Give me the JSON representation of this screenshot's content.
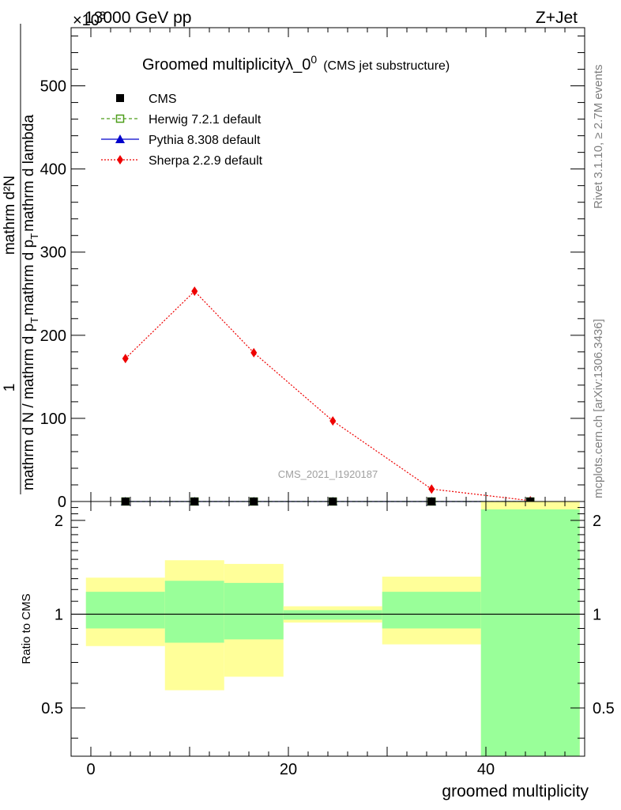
{
  "header": {
    "energy_label": "13000 GeV pp",
    "process_label": "Z+Jet",
    "exponent_label": "×10",
    "exponent_power": "3"
  },
  "side_labels": {
    "rivet": "Rivet 3.1.10, ≥ 2.7M events",
    "mcplots": "mcplots.cern.ch [arXiv:1306.3436]"
  },
  "watermark": "CMS_2021_I1920187",
  "chart_data": [
    {
      "type": "line",
      "title": "Groomed multiplicity",
      "title_symbol": "λ_0",
      "title_power": "0",
      "title_note": "(CMS jet substructure)",
      "ylabel_numerator": "1",
      "ylabel_main": "mathrm d N / mathrm d p",
      "ylabel_top": "mathrm d²N",
      "ylabel_bottom": "mathrm d p",
      "ylabel_tail": "mathrm d lambda",
      "ylabel_sub": "T",
      "xlim": [
        -2,
        50
      ],
      "ylim": [
        0,
        570
      ],
      "yticks": [
        0,
        100,
        200,
        300,
        400,
        500
      ],
      "y_scale_note": "×10^3",
      "bins": [
        [
          -0.5,
          7.5
        ],
        [
          7.5,
          13.5
        ],
        [
          13.5,
          19.5
        ],
        [
          19.5,
          29.5
        ],
        [
          29.5,
          39.5
        ],
        [
          39.5,
          49.5
        ]
      ],
      "x": [
        3.5,
        10.5,
        16.5,
        24.5,
        34.5,
        44.5
      ],
      "series": [
        {
          "name": "CMS",
          "color": "#000000",
          "marker": "square",
          "values": [
            0,
            0,
            0,
            0,
            0,
            0
          ]
        },
        {
          "name": "Herwig 7.2.1 default",
          "color": "#4d9e1a",
          "marker": "open-square",
          "values": [
            0,
            0,
            0,
            0,
            0,
            0
          ]
        },
        {
          "name": "Pythia 8.308 default",
          "color": "#0000cc",
          "marker": "triangle",
          "values": [
            0,
            0,
            0,
            0,
            0,
            0
          ]
        },
        {
          "name": "Sherpa 2.2.9 default",
          "color": "#ee0000",
          "marker": "diamond",
          "values": [
            172,
            253,
            179,
            97,
            15,
            1
          ]
        }
      ],
      "legend": "top-left"
    },
    {
      "type": "area",
      "ylabel": "Ratio to CMS",
      "xlabel": "groomed multiplicity",
      "xlim": [
        -2,
        50
      ],
      "ylim": [
        0.35,
        2.3
      ],
      "xticks": [
        0,
        20,
        40
      ],
      "yticks": [
        0.5,
        1,
        2
      ],
      "reference_line": 1,
      "bands": [
        {
          "x0": -0.5,
          "x1": 7.5,
          "yellow": [
            0.79,
            1.31
          ],
          "green": [
            0.9,
            1.18
          ]
        },
        {
          "x0": 7.5,
          "x1": 13.5,
          "yellow": [
            0.57,
            1.49
          ],
          "green": [
            0.81,
            1.28
          ]
        },
        {
          "x0": 13.5,
          "x1": 19.5,
          "yellow": [
            0.63,
            1.45
          ],
          "green": [
            0.83,
            1.26
          ]
        },
        {
          "x0": 19.5,
          "x1": 29.5,
          "yellow": [
            0.94,
            1.06
          ],
          "green": [
            0.96,
            1.03
          ]
        },
        {
          "x0": 29.5,
          "x1": 39.5,
          "yellow": [
            0.8,
            1.32
          ],
          "green": [
            0.9,
            1.18
          ]
        },
        {
          "x0": 39.5,
          "x1": 49.5,
          "yellow": [
            0.35,
            2.3
          ],
          "green": [
            0.35,
            2.17
          ]
        }
      ],
      "colors": {
        "yellow": "#ffff99",
        "green": "#99ff99"
      }
    }
  ]
}
